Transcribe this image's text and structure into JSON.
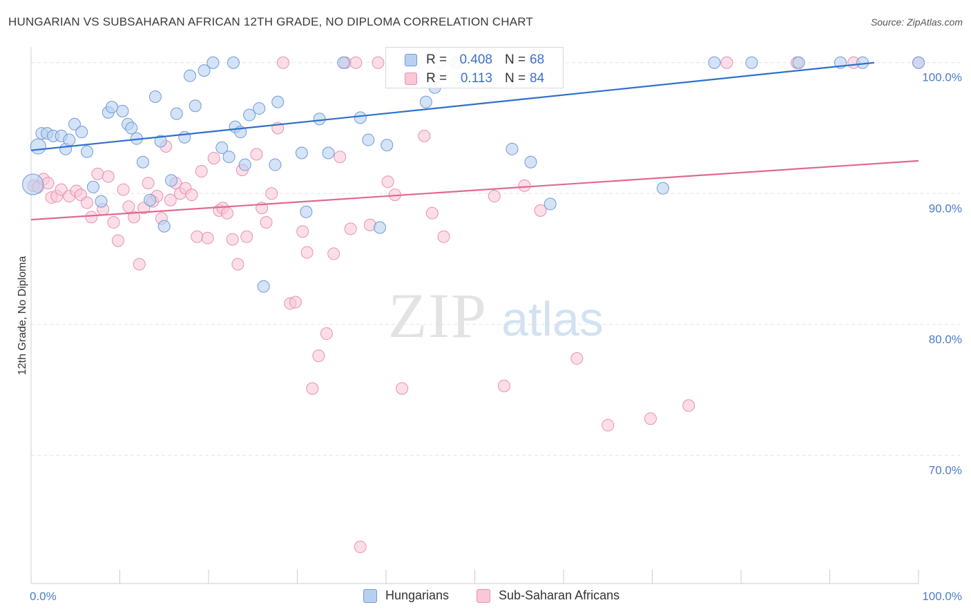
{
  "header": {
    "title": "HUNGARIAN VS SUBSAHARAN AFRICAN 12TH GRADE, NO DIPLOMA CORRELATION CHART",
    "source": "Source: ZipAtlas.com"
  },
  "watermark": {
    "zip": "ZIP",
    "atlas": "atlas"
  },
  "legend_top": {
    "rows": [
      {
        "r_label": "R =",
        "r_value": "0.408",
        "n_label": "N =",
        "n_value": "68"
      },
      {
        "r_label": "R =",
        "r_value": "0.113",
        "n_label": "N =",
        "n_value": "84"
      }
    ]
  },
  "legend_bottom": {
    "items": [
      {
        "label": "Hungarians"
      },
      {
        "label": "Sub-Saharan Africans"
      }
    ]
  },
  "chart_data": {
    "type": "scatter",
    "title": "HUNGARIAN VS SUBSAHARAN AFRICAN 12TH GRADE, NO DIPLOMA CORRELATION CHART",
    "xlabel": "",
    "ylabel": "12th Grade, No Diploma",
    "x_tick_labels": [
      "0.0%",
      "100.0%"
    ],
    "y_tick_labels": [
      "100.0%",
      "90.0%",
      "80.0%",
      "70.0%"
    ],
    "y_ticks": [
      100,
      90,
      80,
      70
    ],
    "xlim": [
      0,
      100
    ],
    "ylim": [
      60.2,
      101.2
    ],
    "grid": true,
    "legend_position": "top-center",
    "colors": {
      "hungarians_fill": "#b8d0f0",
      "hungarians_stroke": "#6f9ad8",
      "hungarians_line": "#2e6fcc",
      "africans_fill": "#f8c8d8",
      "africans_stroke": "#e890b0",
      "africans_line": "#e06890",
      "tick_label": "#4a7cc8",
      "grid": "#e4e4e4"
    },
    "series": [
      {
        "name": "Hungarians",
        "r": 0.408,
        "n": 68,
        "trend": {
          "x": [
            0,
            95
          ],
          "y": [
            93.3,
            100.0
          ]
        },
        "points": [
          [
            0.2,
            90.7
          ],
          [
            0.8,
            93.6
          ],
          [
            1.2,
            94.6
          ],
          [
            1.8,
            94.6
          ],
          [
            2.5,
            94.4
          ],
          [
            3.4,
            94.4
          ],
          [
            3.9,
            93.4
          ],
          [
            4.3,
            94.1
          ],
          [
            4.9,
            95.3
          ],
          [
            5.7,
            94.7
          ],
          [
            6.3,
            93.2
          ],
          [
            7.0,
            90.5
          ],
          [
            7.9,
            89.4
          ],
          [
            8.7,
            96.2
          ],
          [
            9.1,
            96.6
          ],
          [
            10.3,
            96.3
          ],
          [
            10.9,
            95.3
          ],
          [
            11.3,
            95.0
          ],
          [
            11.9,
            94.2
          ],
          [
            12.6,
            92.4
          ],
          [
            13.4,
            89.5
          ],
          [
            14.0,
            97.4
          ],
          [
            14.6,
            94.0
          ],
          [
            15.0,
            87.5
          ],
          [
            15.8,
            91.0
          ],
          [
            16.4,
            96.1
          ],
          [
            17.3,
            94.3
          ],
          [
            17.9,
            99.0
          ],
          [
            18.5,
            96.7
          ],
          [
            19.5,
            99.4
          ],
          [
            20.5,
            100.0
          ],
          [
            21.5,
            93.5
          ],
          [
            22.3,
            92.8
          ],
          [
            23.0,
            95.1
          ],
          [
            23.6,
            94.7
          ],
          [
            24.1,
            92.2
          ],
          [
            24.6,
            96.0
          ],
          [
            25.7,
            96.5
          ],
          [
            26.2,
            82.9
          ],
          [
            27.5,
            92.2
          ],
          [
            27.8,
            97.0
          ],
          [
            30.5,
            93.1
          ],
          [
            31.0,
            88.6
          ],
          [
            32.5,
            95.7
          ],
          [
            33.5,
            93.1
          ],
          [
            35.2,
            100.0
          ],
          [
            37.1,
            95.8
          ],
          [
            38.0,
            94.1
          ],
          [
            39.3,
            87.4
          ],
          [
            40.1,
            93.7
          ],
          [
            42.5,
            100.0
          ],
          [
            43.4,
            100.0
          ],
          [
            44.5,
            97.0
          ],
          [
            45.5,
            98.1
          ],
          [
            46.0,
            100.0
          ],
          [
            47.9,
            100.0
          ],
          [
            51.0,
            100.0
          ],
          [
            54.2,
            93.4
          ],
          [
            56.3,
            92.4
          ],
          [
            58.5,
            89.2
          ],
          [
            71.2,
            90.4
          ],
          [
            77.0,
            100.0
          ],
          [
            81.2,
            100.0
          ],
          [
            86.5,
            100.0
          ],
          [
            91.2,
            100.0
          ],
          [
            93.7,
            100.0
          ],
          [
            100.0,
            100.0
          ],
          [
            22.8,
            100.0
          ]
        ]
      },
      {
        "name": "Sub-Saharan Africans",
        "r": 0.113,
        "n": 84,
        "trend": {
          "x": [
            0,
            100
          ],
          "y": [
            88.0,
            92.5
          ]
        },
        "points": [
          [
            0.3,
            90.6
          ],
          [
            0.8,
            90.5
          ],
          [
            1.4,
            91.1
          ],
          [
            1.9,
            90.8
          ],
          [
            2.3,
            89.7
          ],
          [
            2.9,
            89.8
          ],
          [
            3.4,
            90.3
          ],
          [
            4.3,
            89.8
          ],
          [
            5.1,
            90.2
          ],
          [
            5.6,
            89.9
          ],
          [
            6.3,
            89.3
          ],
          [
            6.8,
            88.2
          ],
          [
            7.5,
            91.5
          ],
          [
            8.1,
            88.8
          ],
          [
            8.7,
            91.3
          ],
          [
            9.3,
            87.8
          ],
          [
            9.8,
            86.4
          ],
          [
            10.4,
            90.3
          ],
          [
            11.0,
            89.0
          ],
          [
            11.6,
            88.2
          ],
          [
            12.2,
            84.6
          ],
          [
            12.7,
            88.9
          ],
          [
            13.2,
            90.8
          ],
          [
            13.7,
            89.4
          ],
          [
            14.2,
            89.8
          ],
          [
            14.7,
            88.1
          ],
          [
            15.2,
            93.6
          ],
          [
            15.7,
            89.5
          ],
          [
            16.3,
            90.8
          ],
          [
            16.8,
            90.0
          ],
          [
            17.4,
            90.4
          ],
          [
            18.1,
            89.9
          ],
          [
            18.7,
            86.7
          ],
          [
            19.2,
            91.7
          ],
          [
            19.9,
            86.6
          ],
          [
            20.6,
            92.7
          ],
          [
            21.2,
            88.7
          ],
          [
            21.6,
            88.9
          ],
          [
            22.1,
            88.5
          ],
          [
            22.7,
            86.5
          ],
          [
            23.3,
            84.6
          ],
          [
            23.8,
            91.8
          ],
          [
            24.3,
            86.7
          ],
          [
            25.4,
            93.0
          ],
          [
            26.0,
            88.9
          ],
          [
            26.5,
            87.8
          ],
          [
            27.1,
            90.0
          ],
          [
            27.8,
            95.0
          ],
          [
            28.4,
            100.0
          ],
          [
            29.2,
            81.6
          ],
          [
            29.8,
            81.7
          ],
          [
            30.6,
            87.1
          ],
          [
            31.1,
            85.5
          ],
          [
            31.7,
            75.1
          ],
          [
            32.4,
            77.6
          ],
          [
            33.3,
            79.3
          ],
          [
            34.1,
            85.4
          ],
          [
            34.8,
            92.8
          ],
          [
            35.4,
            100.0
          ],
          [
            36.0,
            87.3
          ],
          [
            36.6,
            100.0
          ],
          [
            37.1,
            63.0
          ],
          [
            38.2,
            87.6
          ],
          [
            39.1,
            100.0
          ],
          [
            40.2,
            90.9
          ],
          [
            41.0,
            89.9
          ],
          [
            41.8,
            75.1
          ],
          [
            43.0,
            100.0
          ],
          [
            44.3,
            94.4
          ],
          [
            45.2,
            88.5
          ],
          [
            46.5,
            86.7
          ],
          [
            48.0,
            100.0
          ],
          [
            52.2,
            89.8
          ],
          [
            53.3,
            75.3
          ],
          [
            55.6,
            90.6
          ],
          [
            57.4,
            88.7
          ],
          [
            61.5,
            77.4
          ],
          [
            65.0,
            72.3
          ],
          [
            69.8,
            72.8
          ],
          [
            74.1,
            73.8
          ],
          [
            78.4,
            100.0
          ],
          [
            86.3,
            100.0
          ],
          [
            92.7,
            100.0
          ],
          [
            100.0,
            100.0
          ]
        ]
      }
    ]
  }
}
